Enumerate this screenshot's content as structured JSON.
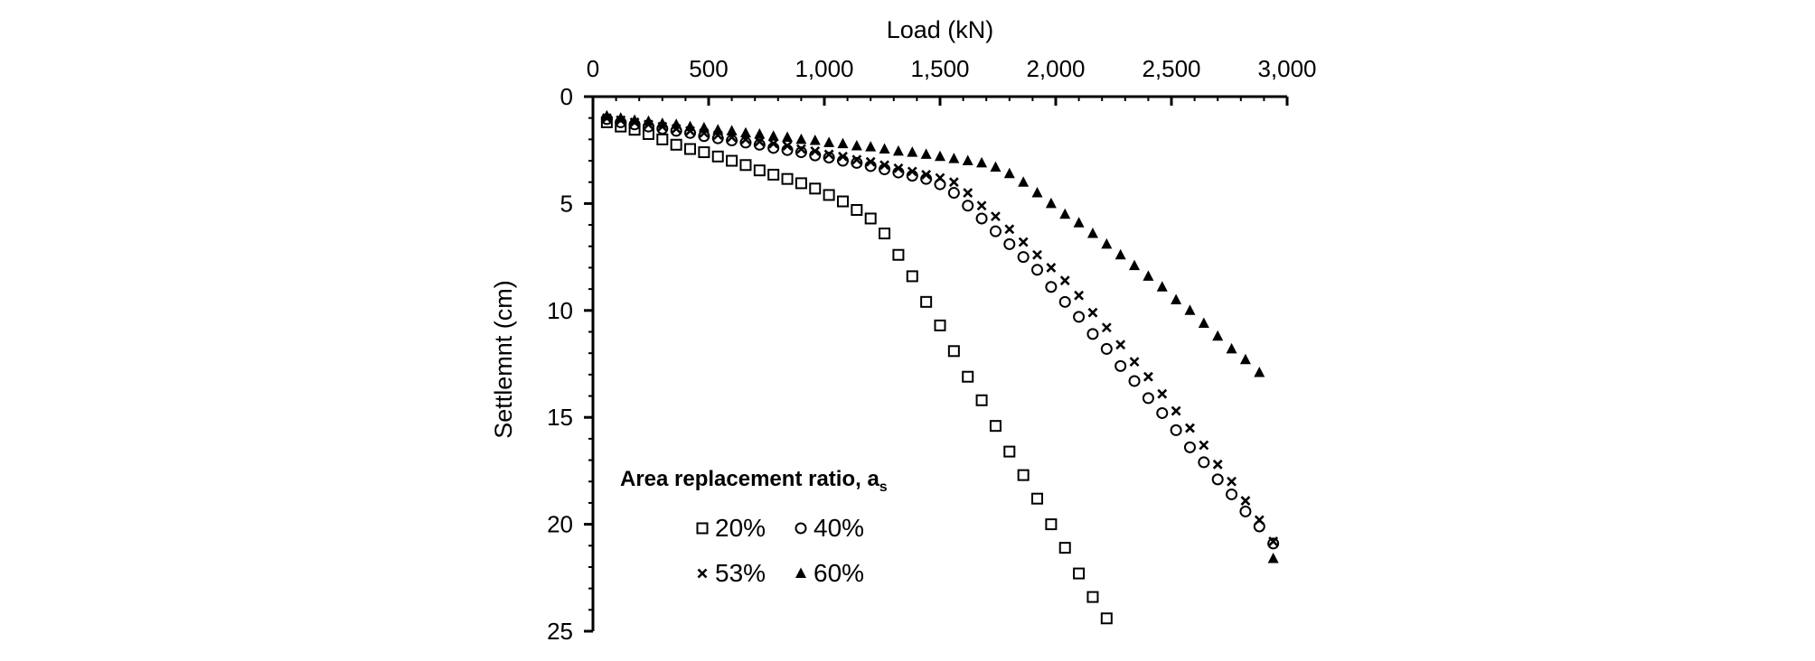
{
  "chart_data": {
    "type": "scatter",
    "title": "",
    "xlabel": "Load (kN)",
    "ylabel": "Settlemnt (cm)",
    "xlim": [
      0,
      3000
    ],
    "ylim": [
      0,
      25
    ],
    "y_inverted": true,
    "x_axis_position": "top",
    "xticks": [
      0,
      500,
      1000,
      1500,
      2000,
      2500,
      3000
    ],
    "xtick_labels": [
      "0",
      "500",
      "1,000",
      "1,500",
      "2,000",
      "2,500",
      "3,000"
    ],
    "yticks": [
      0,
      5,
      10,
      15,
      20,
      25
    ],
    "ytick_labels": [
      "0",
      "5",
      "10",
      "15",
      "20",
      "25"
    ],
    "grid": false,
    "legend": {
      "title_main": "Area replacement ratio, a",
      "title_subscript": "s",
      "placement": "bottom-left"
    },
    "series": [
      {
        "name": "20%",
        "marker": "square",
        "points": [
          [
            60,
            1.2
          ],
          [
            120,
            1.4
          ],
          [
            180,
            1.55
          ],
          [
            240,
            1.75
          ],
          [
            300,
            2.0
          ],
          [
            360,
            2.25
          ],
          [
            420,
            2.45
          ],
          [
            480,
            2.6
          ],
          [
            540,
            2.8
          ],
          [
            600,
            3.0
          ],
          [
            660,
            3.2
          ],
          [
            720,
            3.45
          ],
          [
            780,
            3.65
          ],
          [
            840,
            3.85
          ],
          [
            900,
            4.05
          ],
          [
            960,
            4.3
          ],
          [
            1020,
            4.6
          ],
          [
            1080,
            4.9
          ],
          [
            1140,
            5.3
          ],
          [
            1200,
            5.7
          ],
          [
            1260,
            6.4
          ],
          [
            1320,
            7.4
          ],
          [
            1380,
            8.4
          ],
          [
            1440,
            9.6
          ],
          [
            1500,
            10.7
          ],
          [
            1560,
            11.9
          ],
          [
            1620,
            13.1
          ],
          [
            1680,
            14.2
          ],
          [
            1740,
            15.4
          ],
          [
            1800,
            16.6
          ],
          [
            1860,
            17.7
          ],
          [
            1920,
            18.8
          ],
          [
            1980,
            20.0
          ],
          [
            2040,
            21.1
          ],
          [
            2100,
            22.3
          ],
          [
            2160,
            23.4
          ],
          [
            2220,
            24.4
          ]
        ]
      },
      {
        "name": "40%",
        "marker": "circle",
        "points": [
          [
            60,
            1.05
          ],
          [
            120,
            1.2
          ],
          [
            180,
            1.3
          ],
          [
            240,
            1.4
          ],
          [
            300,
            1.5
          ],
          [
            360,
            1.6
          ],
          [
            420,
            1.7
          ],
          [
            480,
            1.85
          ],
          [
            540,
            1.95
          ],
          [
            600,
            2.05
          ],
          [
            660,
            2.15
          ],
          [
            720,
            2.25
          ],
          [
            780,
            2.4
          ],
          [
            840,
            2.5
          ],
          [
            900,
            2.6
          ],
          [
            960,
            2.75
          ],
          [
            1020,
            2.85
          ],
          [
            1080,
            3.0
          ],
          [
            1140,
            3.1
          ],
          [
            1200,
            3.25
          ],
          [
            1260,
            3.4
          ],
          [
            1320,
            3.55
          ],
          [
            1380,
            3.7
          ],
          [
            1440,
            3.85
          ],
          [
            1500,
            4.1
          ],
          [
            1560,
            4.5
          ],
          [
            1620,
            5.1
          ],
          [
            1680,
            5.7
          ],
          [
            1740,
            6.3
          ],
          [
            1800,
            6.9
          ],
          [
            1860,
            7.5
          ],
          [
            1920,
            8.1
          ],
          [
            1980,
            8.9
          ],
          [
            2040,
            9.6
          ],
          [
            2100,
            10.3
          ],
          [
            2160,
            11.1
          ],
          [
            2220,
            11.8
          ],
          [
            2280,
            12.6
          ],
          [
            2340,
            13.3
          ],
          [
            2400,
            14.1
          ],
          [
            2460,
            14.8
          ],
          [
            2520,
            15.6
          ],
          [
            2580,
            16.4
          ],
          [
            2640,
            17.1
          ],
          [
            2700,
            17.9
          ],
          [
            2760,
            18.6
          ],
          [
            2820,
            19.4
          ],
          [
            2880,
            20.1
          ],
          [
            2940,
            20.9
          ]
        ]
      },
      {
        "name": "53%",
        "marker": "x",
        "points": [
          [
            60,
            1.0
          ],
          [
            120,
            1.1
          ],
          [
            180,
            1.2
          ],
          [
            240,
            1.3
          ],
          [
            300,
            1.4
          ],
          [
            360,
            1.5
          ],
          [
            420,
            1.6
          ],
          [
            480,
            1.7
          ],
          [
            540,
            1.8
          ],
          [
            600,
            1.9
          ],
          [
            660,
            2.0
          ],
          [
            720,
            2.1
          ],
          [
            780,
            2.2
          ],
          [
            840,
            2.3
          ],
          [
            900,
            2.45
          ],
          [
            960,
            2.55
          ],
          [
            1020,
            2.7
          ],
          [
            1080,
            2.8
          ],
          [
            1140,
            2.95
          ],
          [
            1200,
            3.05
          ],
          [
            1260,
            3.2
          ],
          [
            1320,
            3.35
          ],
          [
            1380,
            3.5
          ],
          [
            1440,
            3.65
          ],
          [
            1500,
            3.8
          ],
          [
            1560,
            4.0
          ],
          [
            1620,
            4.5
          ],
          [
            1680,
            5.1
          ],
          [
            1740,
            5.6
          ],
          [
            1800,
            6.2
          ],
          [
            1860,
            6.8
          ],
          [
            1920,
            7.4
          ],
          [
            1980,
            8.0
          ],
          [
            2040,
            8.6
          ],
          [
            2100,
            9.3
          ],
          [
            2160,
            10.1
          ],
          [
            2220,
            10.8
          ],
          [
            2280,
            11.6
          ],
          [
            2340,
            12.4
          ],
          [
            2400,
            13.1
          ],
          [
            2460,
            13.9
          ],
          [
            2520,
            14.7
          ],
          [
            2580,
            15.5
          ],
          [
            2640,
            16.3
          ],
          [
            2700,
            17.2
          ],
          [
            2760,
            18.0
          ],
          [
            2820,
            18.9
          ],
          [
            2880,
            19.8
          ],
          [
            2940,
            20.8
          ]
        ]
      },
      {
        "name": "60%",
        "marker": "triangle",
        "points": [
          [
            60,
            0.9
          ],
          [
            120,
            1.0
          ],
          [
            180,
            1.1
          ],
          [
            240,
            1.15
          ],
          [
            300,
            1.25
          ],
          [
            360,
            1.3
          ],
          [
            420,
            1.4
          ],
          [
            480,
            1.45
          ],
          [
            540,
            1.55
          ],
          [
            600,
            1.6
          ],
          [
            660,
            1.7
          ],
          [
            720,
            1.75
          ],
          [
            780,
            1.85
          ],
          [
            840,
            1.9
          ],
          [
            900,
            2.0
          ],
          [
            960,
            2.05
          ],
          [
            1020,
            2.15
          ],
          [
            1080,
            2.2
          ],
          [
            1140,
            2.3
          ],
          [
            1200,
            2.35
          ],
          [
            1260,
            2.45
          ],
          [
            1320,
            2.55
          ],
          [
            1380,
            2.6
          ],
          [
            1440,
            2.7
          ],
          [
            1500,
            2.8
          ],
          [
            1560,
            2.9
          ],
          [
            1620,
            3.0
          ],
          [
            1680,
            3.1
          ],
          [
            1740,
            3.3
          ],
          [
            1800,
            3.6
          ],
          [
            1860,
            4.0
          ],
          [
            1920,
            4.5
          ],
          [
            1980,
            5.0
          ],
          [
            2040,
            5.5
          ],
          [
            2100,
            5.9
          ],
          [
            2160,
            6.4
          ],
          [
            2220,
            6.9
          ],
          [
            2280,
            7.4
          ],
          [
            2340,
            7.9
          ],
          [
            2400,
            8.4
          ],
          [
            2460,
            8.9
          ],
          [
            2520,
            9.5
          ],
          [
            2580,
            10.0
          ],
          [
            2640,
            10.6
          ],
          [
            2700,
            11.2
          ],
          [
            2760,
            11.8
          ],
          [
            2820,
            12.3
          ],
          [
            2880,
            12.9
          ],
          [
            2940,
            21.6
          ]
        ]
      }
    ]
  }
}
